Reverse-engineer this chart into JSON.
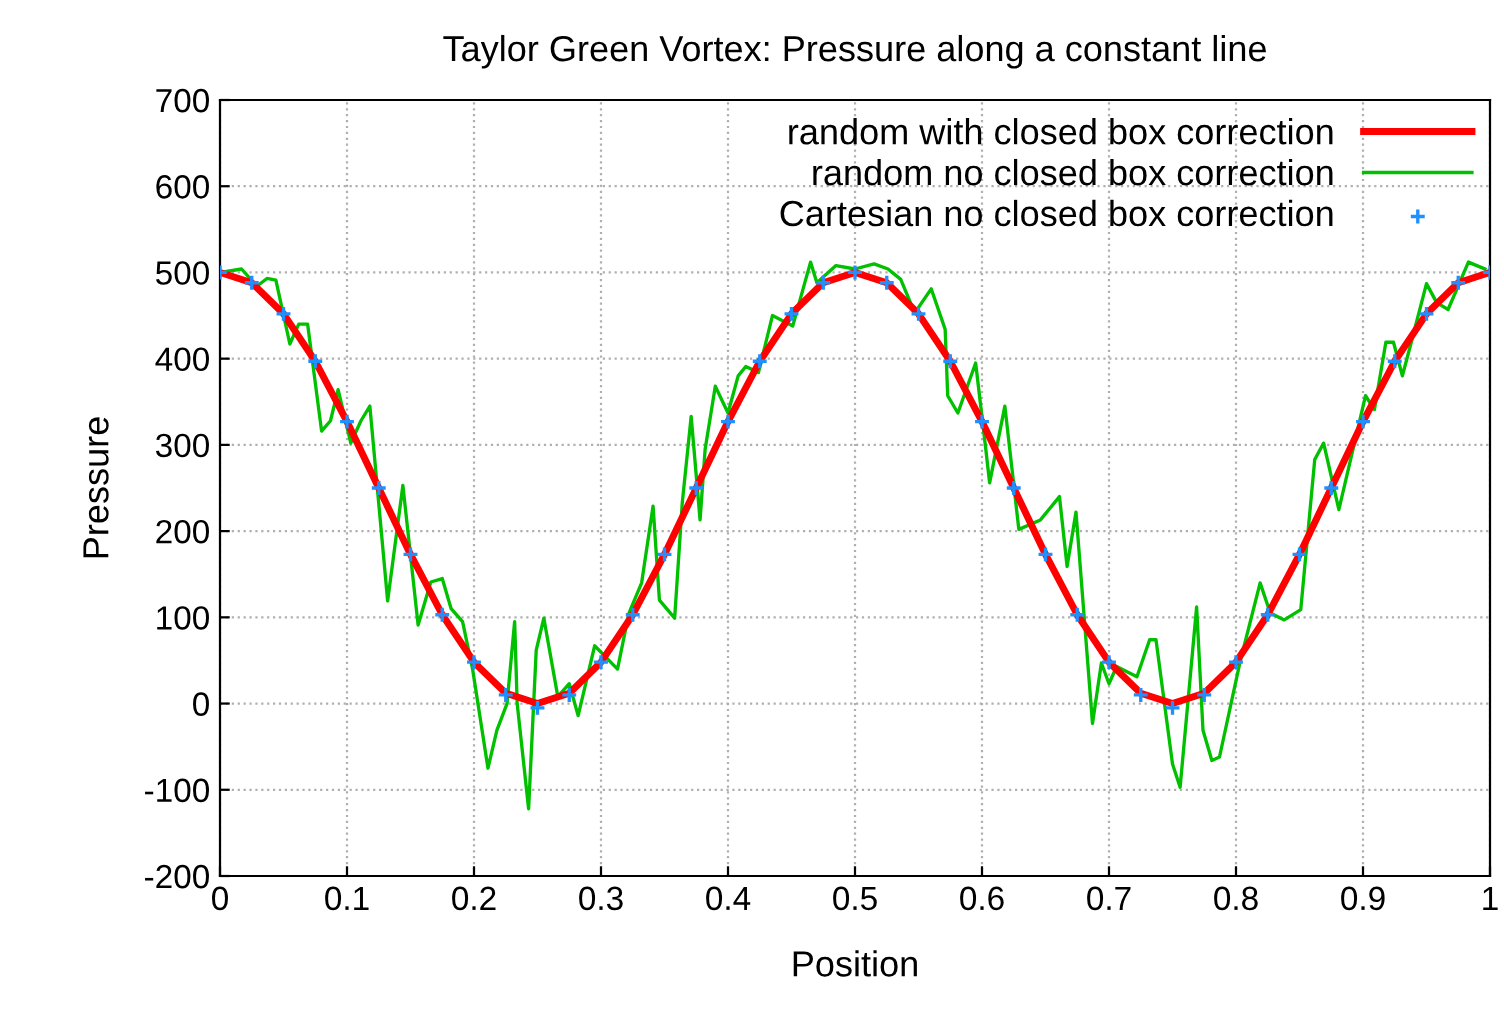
{
  "chart_data": {
    "type": "line",
    "title": "Taylor Green Vortex: Pressure along a constant line",
    "xlabel": "Position",
    "ylabel": "Pressure",
    "xlim": [
      0,
      1
    ],
    "xticks": [
      0,
      0.1,
      0.2,
      0.3,
      0.4,
      0.5,
      0.6,
      0.7,
      0.8,
      0.9,
      1
    ],
    "ylim": [
      -200,
      700
    ],
    "yticks": [
      -200,
      -100,
      0,
      100,
      200,
      300,
      400,
      500,
      600,
      700
    ],
    "grid": true,
    "legend": "top right",
    "series": [
      {
        "name": "random with closed box correction",
        "color": "#ff0000",
        "marker": "none",
        "x": [
          0,
          0.025,
          0.05,
          0.075,
          0.1,
          0.125,
          0.15,
          0.175,
          0.2,
          0.225,
          0.25,
          0.275,
          0.3,
          0.325,
          0.35,
          0.375,
          0.4,
          0.425,
          0.45,
          0.475,
          0.5,
          0.525,
          0.55,
          0.575,
          0.6,
          0.625,
          0.65,
          0.675,
          0.7,
          0.725,
          0.75,
          0.775,
          0.8,
          0.825,
          0.85,
          0.875,
          0.9,
          0.925,
          0.95,
          0.975,
          1
        ],
        "values": [
          500,
          488,
          452,
          397,
          327,
          250,
          173,
          103,
          48,
          12,
          0,
          12,
          48,
          103,
          173,
          250,
          327,
          397,
          452,
          488,
          500,
          488,
          452,
          397,
          327,
          250,
          173,
          103,
          48,
          12,
          0,
          12,
          48,
          103,
          173,
          250,
          327,
          397,
          452,
          488,
          500
        ]
      },
      {
        "name": "random no closed box correction",
        "color": "#00c000",
        "marker": "none",
        "x": [
          0,
          0.017,
          0.029,
          0.037,
          0.044,
          0.055,
          0.062,
          0.069,
          0.08,
          0.087,
          0.093,
          0.103,
          0.111,
          0.118,
          0.132,
          0.144,
          0.156,
          0.166,
          0.175,
          0.182,
          0.191,
          0.199,
          0.211,
          0.218,
          0.226,
          0.232,
          0.234,
          0.243,
          0.249,
          0.255,
          0.266,
          0.275,
          0.282,
          0.295,
          0.313,
          0.322,
          0.332,
          0.341,
          0.346,
          0.358,
          0.364,
          0.371,
          0.378,
          0.382,
          0.39,
          0.4,
          0.408,
          0.414,
          0.424,
          0.435,
          0.451,
          0.465,
          0.47,
          0.485,
          0.5,
          0.515,
          0.526,
          0.536,
          0.547,
          0.56,
          0.571,
          0.573,
          0.581,
          0.595,
          0.603,
          0.606,
          0.618,
          0.629,
          0.646,
          0.661,
          0.667,
          0.674,
          0.687,
          0.694,
          0.7,
          0.706,
          0.722,
          0.732,
          0.737,
          0.75,
          0.756,
          0.769,
          0.774,
          0.781,
          0.787,
          0.803,
          0.819,
          0.827,
          0.838,
          0.851,
          0.862,
          0.869,
          0.881,
          0.902,
          0.909,
          0.918,
          0.924,
          0.931,
          0.938,
          0.95,
          0.958,
          0.967,
          0.983,
          0.996
        ],
        "values": [
          500,
          504,
          484,
          493,
          491,
          417,
          440,
          440,
          316,
          328,
          364,
          302,
          328,
          345,
          119,
          253,
          91,
          141,
          145,
          110,
          95,
          39,
          -75,
          -31,
          0,
          95,
          0,
          -122,
          62,
          99,
          8,
          23,
          -14,
          67,
          40,
          105,
          140,
          229,
          120,
          99,
          233,
          333,
          213,
          295,
          368,
          337,
          380,
          391,
          384,
          450,
          438,
          512,
          488,
          508,
          504,
          510,
          504,
          492,
          453,
          481,
          434,
          357,
          337,
          395,
          295,
          256,
          345,
          202,
          213,
          240,
          159,
          222,
          -23,
          47,
          23,
          43,
          31,
          74,
          74,
          -70,
          -97,
          112,
          -31,
          -66,
          -62,
          47,
          140,
          105,
          97,
          109,
          283,
          302,
          225,
          357,
          341,
          419,
          419,
          380,
          419,
          487,
          465,
          457,
          512,
          504
        ]
      },
      {
        "name": "Cartesian no closed box correction",
        "color": "#1e90ff",
        "type": "scatter",
        "marker": "cross",
        "x": [
          0,
          0.025,
          0.05,
          0.075,
          0.1,
          0.125,
          0.15,
          0.175,
          0.2,
          0.225,
          0.25,
          0.275,
          0.3,
          0.325,
          0.35,
          0.375,
          0.4,
          0.425,
          0.45,
          0.475,
          0.5,
          0.525,
          0.55,
          0.575,
          0.6,
          0.625,
          0.65,
          0.675,
          0.7,
          0.725,
          0.75,
          0.775,
          0.8,
          0.825,
          0.85,
          0.875,
          0.9,
          0.925,
          0.95,
          0.975,
          1
        ],
        "values": [
          500,
          488,
          452,
          397,
          327,
          250,
          173,
          103,
          48,
          10,
          -5,
          10,
          48,
          103,
          173,
          250,
          327,
          397,
          452,
          488,
          500,
          488,
          452,
          397,
          327,
          250,
          173,
          103,
          48,
          10,
          -5,
          10,
          48,
          103,
          173,
          250,
          327,
          397,
          452,
          488,
          500
        ]
      }
    ]
  }
}
